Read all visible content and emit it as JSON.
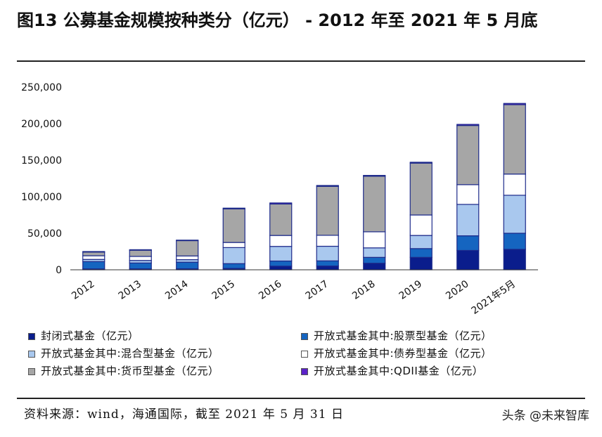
{
  "title": "图13 公募基金规模按种类分（亿元） - 2012 年至 2021 年 5 月底",
  "chart_data": {
    "type": "bar",
    "stacked": true,
    "title": "图13 公募基金规模按种类分（亿元） - 2012 年至 2021 年 5 月底",
    "xlabel": "",
    "ylabel": "",
    "ylim": [
      0,
      250000
    ],
    "yticks": [
      0,
      50000,
      100000,
      150000,
      200000,
      250000
    ],
    "ytick_labels": [
      "0",
      "50,000",
      "100,000",
      "150,000",
      "200,000",
      "250,000"
    ],
    "categories": [
      "2012",
      "2013",
      "2014",
      "2015",
      "2016",
      "2017",
      "2018",
      "2019",
      "2020",
      "2021年5月"
    ],
    "series": [
      {
        "name": "封闭式基金（亿元）",
        "color": "#0a1d8c",
        "values": [
          1200,
          1300,
          1400,
          1900,
          5000,
          5200,
          9000,
          17000,
          26500,
          28000
        ]
      },
      {
        "name": "开放式基金其中:股票型基金（亿元）",
        "color": "#1565c0",
        "values": [
          10000,
          8000,
          9000,
          6500,
          7000,
          7000,
          8000,
          12000,
          20000,
          22000
        ]
      },
      {
        "name": "开放式基金其中:混合型基金（亿元）",
        "color": "#a9c8ee",
        "values": [
          3000,
          3500,
          3500,
          22000,
          20000,
          20000,
          13000,
          18000,
          43000,
          52000
        ]
      },
      {
        "name": "开放式基金其中:债券型基金（亿元）",
        "color": "#ffffff",
        "values": [
          5000,
          5500,
          5000,
          7000,
          15000,
          15000,
          22000,
          28000,
          27000,
          29000
        ]
      },
      {
        "name": "开放式基金其中:货币型基金（亿元）",
        "color": "#a6a6a6",
        "values": [
          5000,
          8500,
          21000,
          46000,
          43000,
          67000,
          76000,
          71000,
          81000,
          95000
        ]
      },
      {
        "name": "开放式基金其中:QDII基金（亿元）",
        "color": "#5b22c8",
        "values": [
          800,
          700,
          700,
          1000,
          1500,
          1200,
          1200,
          1200,
          1500,
          1700
        ]
      }
    ],
    "legend_position": "bottom",
    "grid": false
  },
  "source": "资料来源：wind，海通国际，截至 2021 年 5 月 31 日",
  "watermark": "头条 @未来智库"
}
